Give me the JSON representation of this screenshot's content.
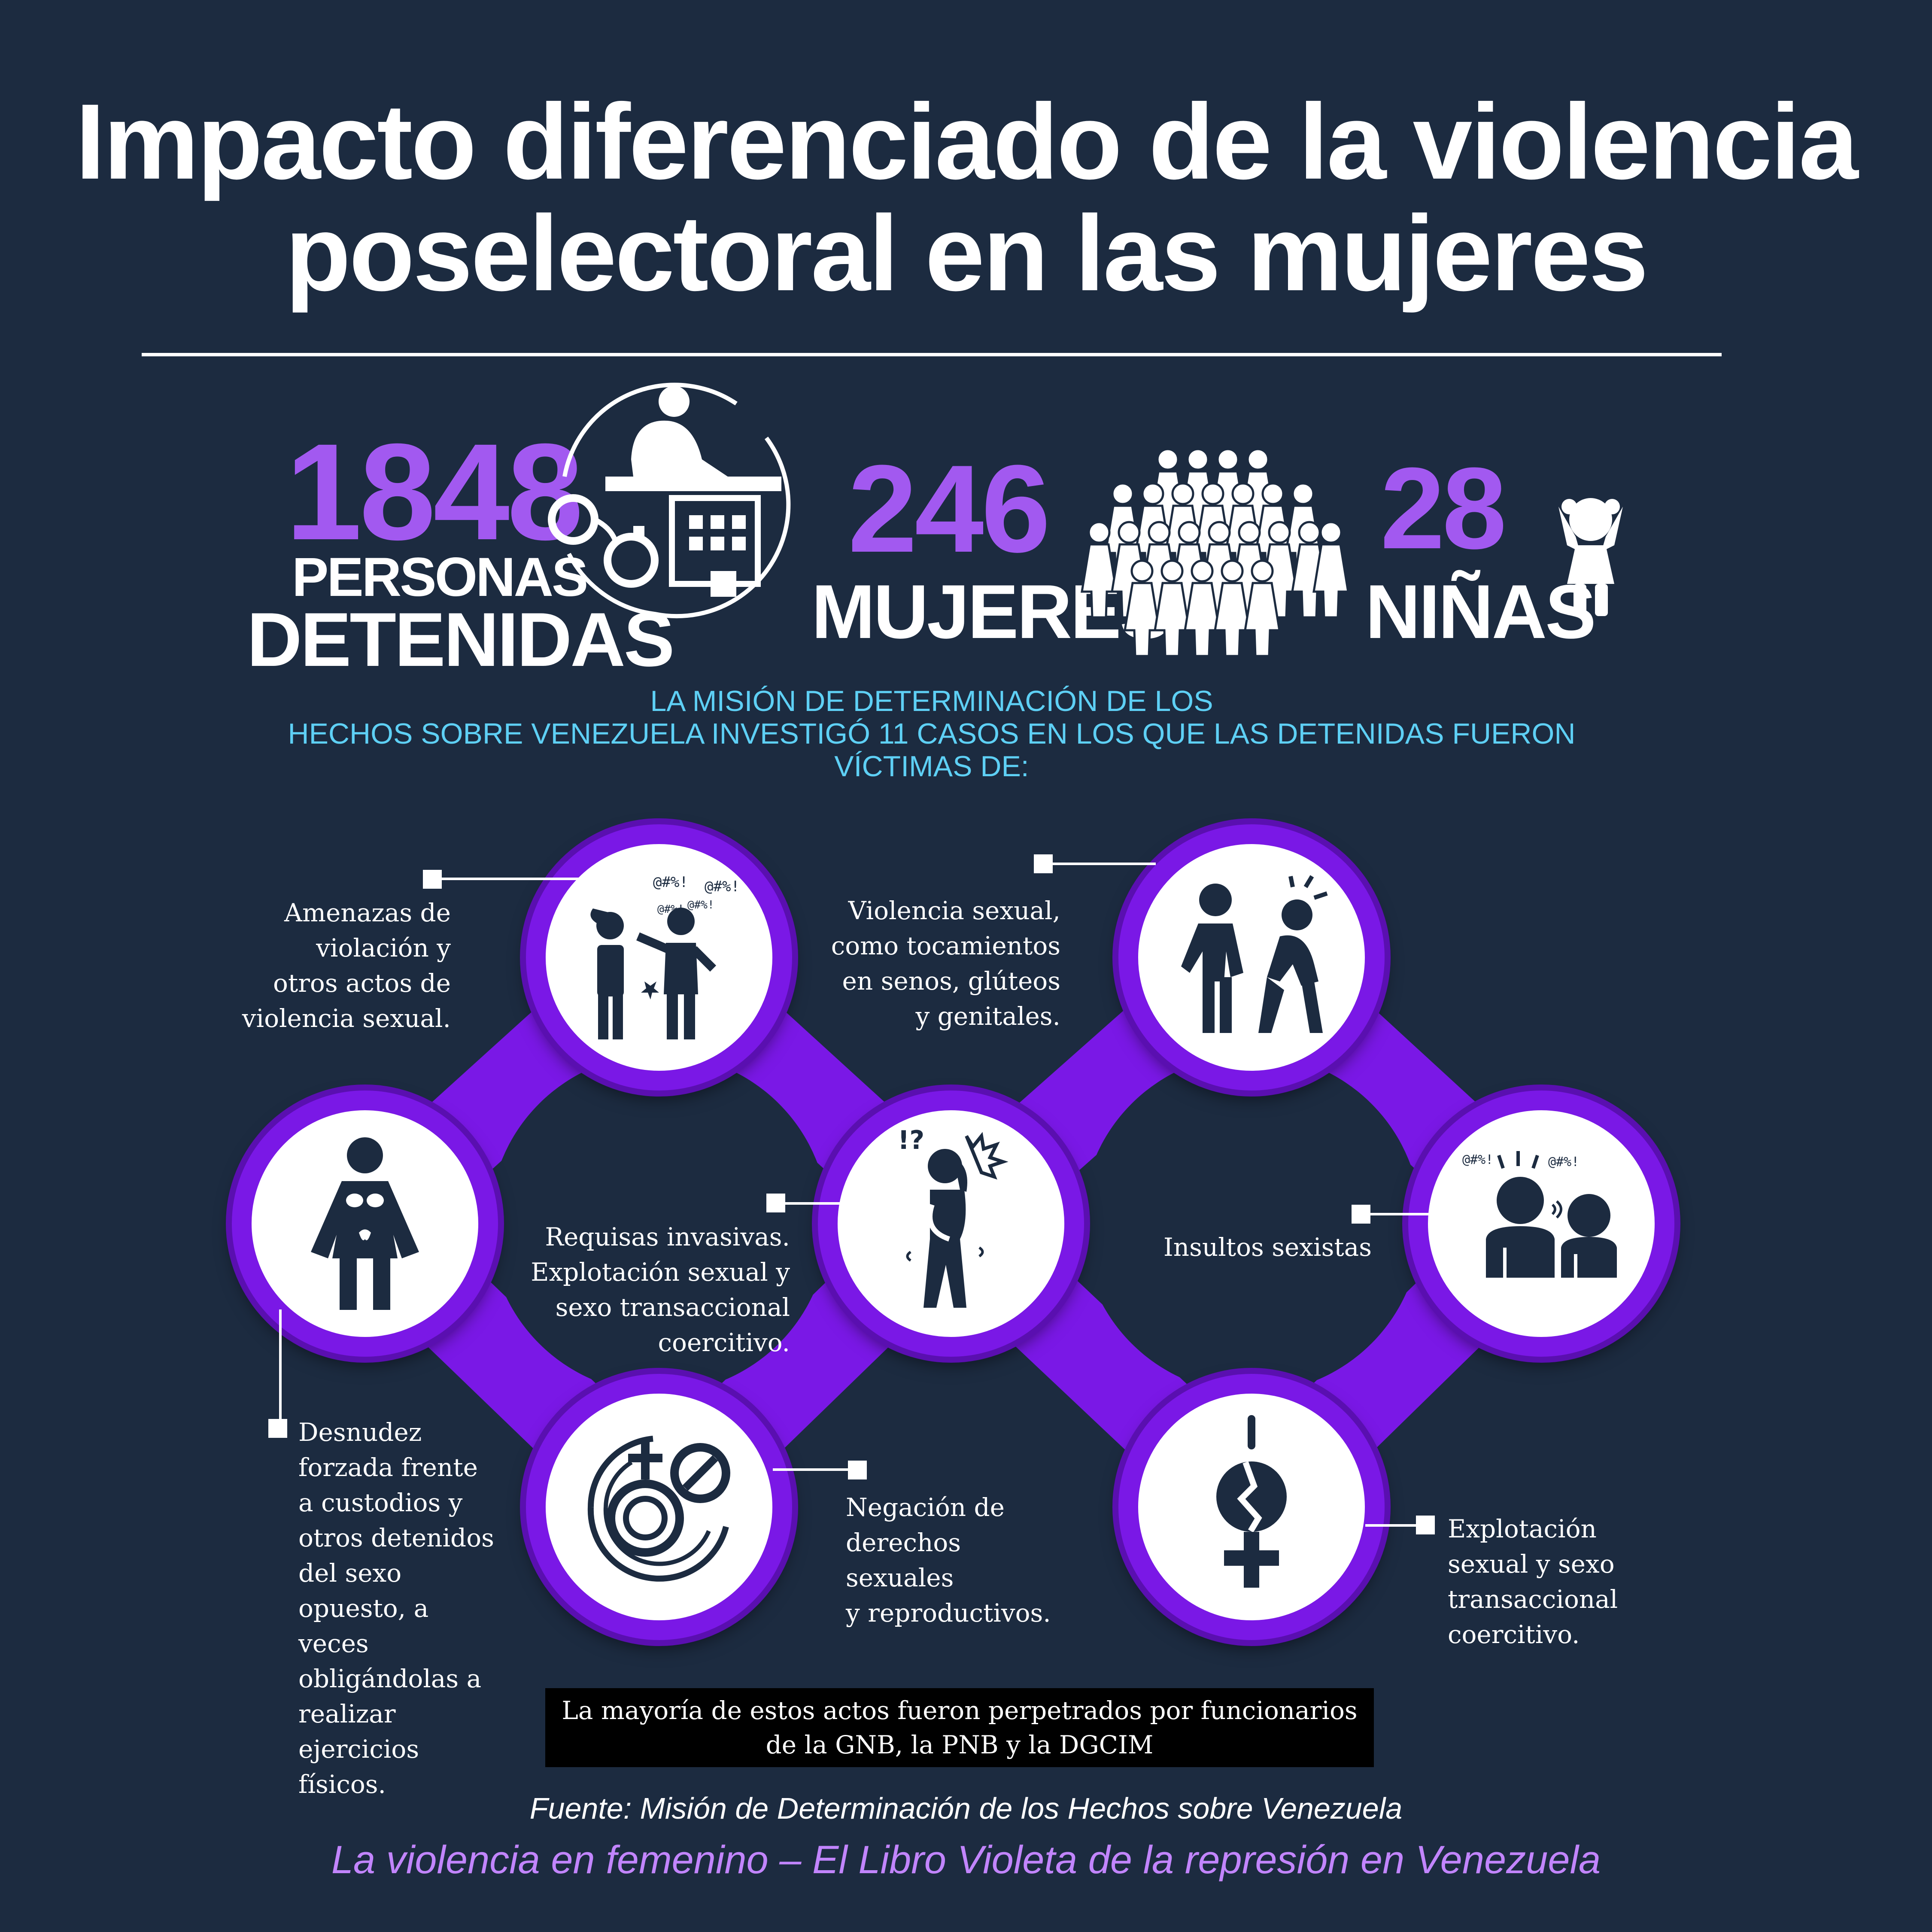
{
  "title": {
    "line1": "Impacto diferenciado de la violencia",
    "line2": "poselectoral en las mujeres"
  },
  "stats": {
    "detained": {
      "number": "1848",
      "label1": "PERSONAS",
      "label2": "DETENIDAS"
    },
    "women": {
      "number": "246",
      "label": "MUJERES"
    },
    "girls": {
      "number": "28",
      "label": "NIÑAS"
    }
  },
  "intro": {
    "line1": "LA MISIÓN DE DETERMINACIÓN DE LOS",
    "line2": "HECHOS SOBRE VENEZUELA INVESTIGÓ 11 CASOS EN LOS QUE LAS DETENIDAS FUERON",
    "line3": "VÍCTIMAS DE:"
  },
  "items": {
    "threats": [
      "Amenazas de",
      "violación y",
      "otros actos de",
      "violencia sexual."
    ],
    "sexual_violence": [
      "Violencia sexual,",
      "como tocamientos",
      "en senos, glúteos",
      "y genitales."
    ],
    "searches": [
      "Requisas invasivas.",
      "Explotación sexual y",
      "sexo transaccional",
      "coercitivo."
    ],
    "insults": [
      "Insultos sexistas"
    ],
    "nudity": [
      "Desnudez",
      "forzada frente",
      "a custodios y",
      "otros detenidos",
      "del sexo",
      "opuesto, a",
      "veces",
      "obligándolas a",
      "realizar",
      "ejercicios",
      "físicos."
    ],
    "rights": [
      "Negación de",
      "derechos",
      "sexuales",
      "y reproductivos."
    ],
    "exploitation": [
      "Explotación",
      "sexual y sexo",
      "transaccional",
      "coercitivo."
    ]
  },
  "note": {
    "line1": "La mayoría de estos actos fueron perpetrados por funcionarios",
    "line2": "de la GNB, la PNB y la DGCIM"
  },
  "source": "Fuente: Misión de Determinación de los Hechos sobre Venezuela",
  "book": "La violencia en femenino – El Libro Violeta de la represión en Venezuela",
  "icons": {
    "detained": "detention-icon",
    "women": "women-group-icon",
    "girls": "girl-icon",
    "threats": "threat-icon",
    "sexual_violence": "assault-icon",
    "nudity": "exposed-woman-icon",
    "searches": "distressed-woman-icon",
    "insults": "insult-icon",
    "rights": "denied-gender-icon",
    "exploitation": "broken-female-symbol-icon"
  },
  "colors": {
    "background": "#1c2b40",
    "accent": "#a259f0",
    "ring": "#7a18e6",
    "intro": "#5ed0f5",
    "book": "#c285ff"
  }
}
